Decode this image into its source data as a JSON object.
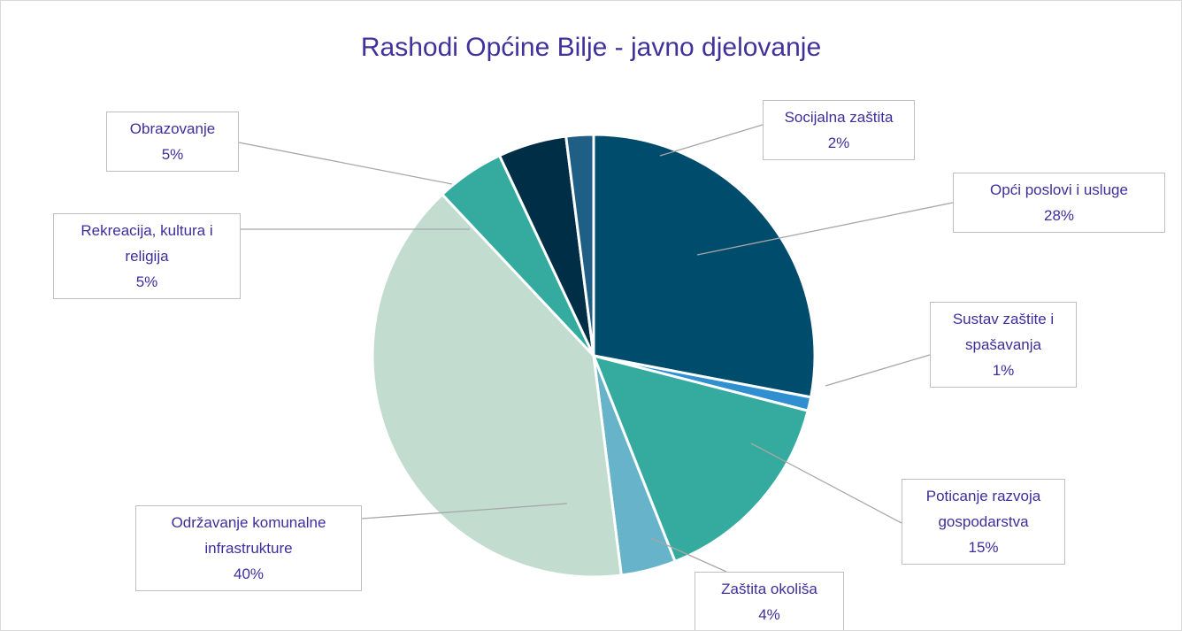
{
  "chart_data": {
    "type": "pie",
    "title": "Rashodi Općine Bilje - javno djelovanje",
    "categories": [
      "Opći poslovi i usluge",
      "Sustav zaštite i spašavanja",
      "Poticanje razvoja gospodarstva",
      "Zaštita okoliša",
      "Održavanje komunalne infrastrukture",
      "Rekreacija, kultura i religija",
      "Obrazovanje",
      "Socijalna zaštita"
    ],
    "values": [
      28,
      1,
      15,
      4,
      40,
      5,
      5,
      2
    ],
    "value_labels": [
      "28%",
      "1%",
      "15%",
      "4%",
      "40%",
      "5%",
      "5%",
      "2%"
    ],
    "colors": [
      "#004c6d",
      "#2f8fd0",
      "#35aba0",
      "#67b3c9",
      "#c2dccf",
      "#35aba0",
      "#002e47",
      "#1f5e85"
    ]
  }
}
